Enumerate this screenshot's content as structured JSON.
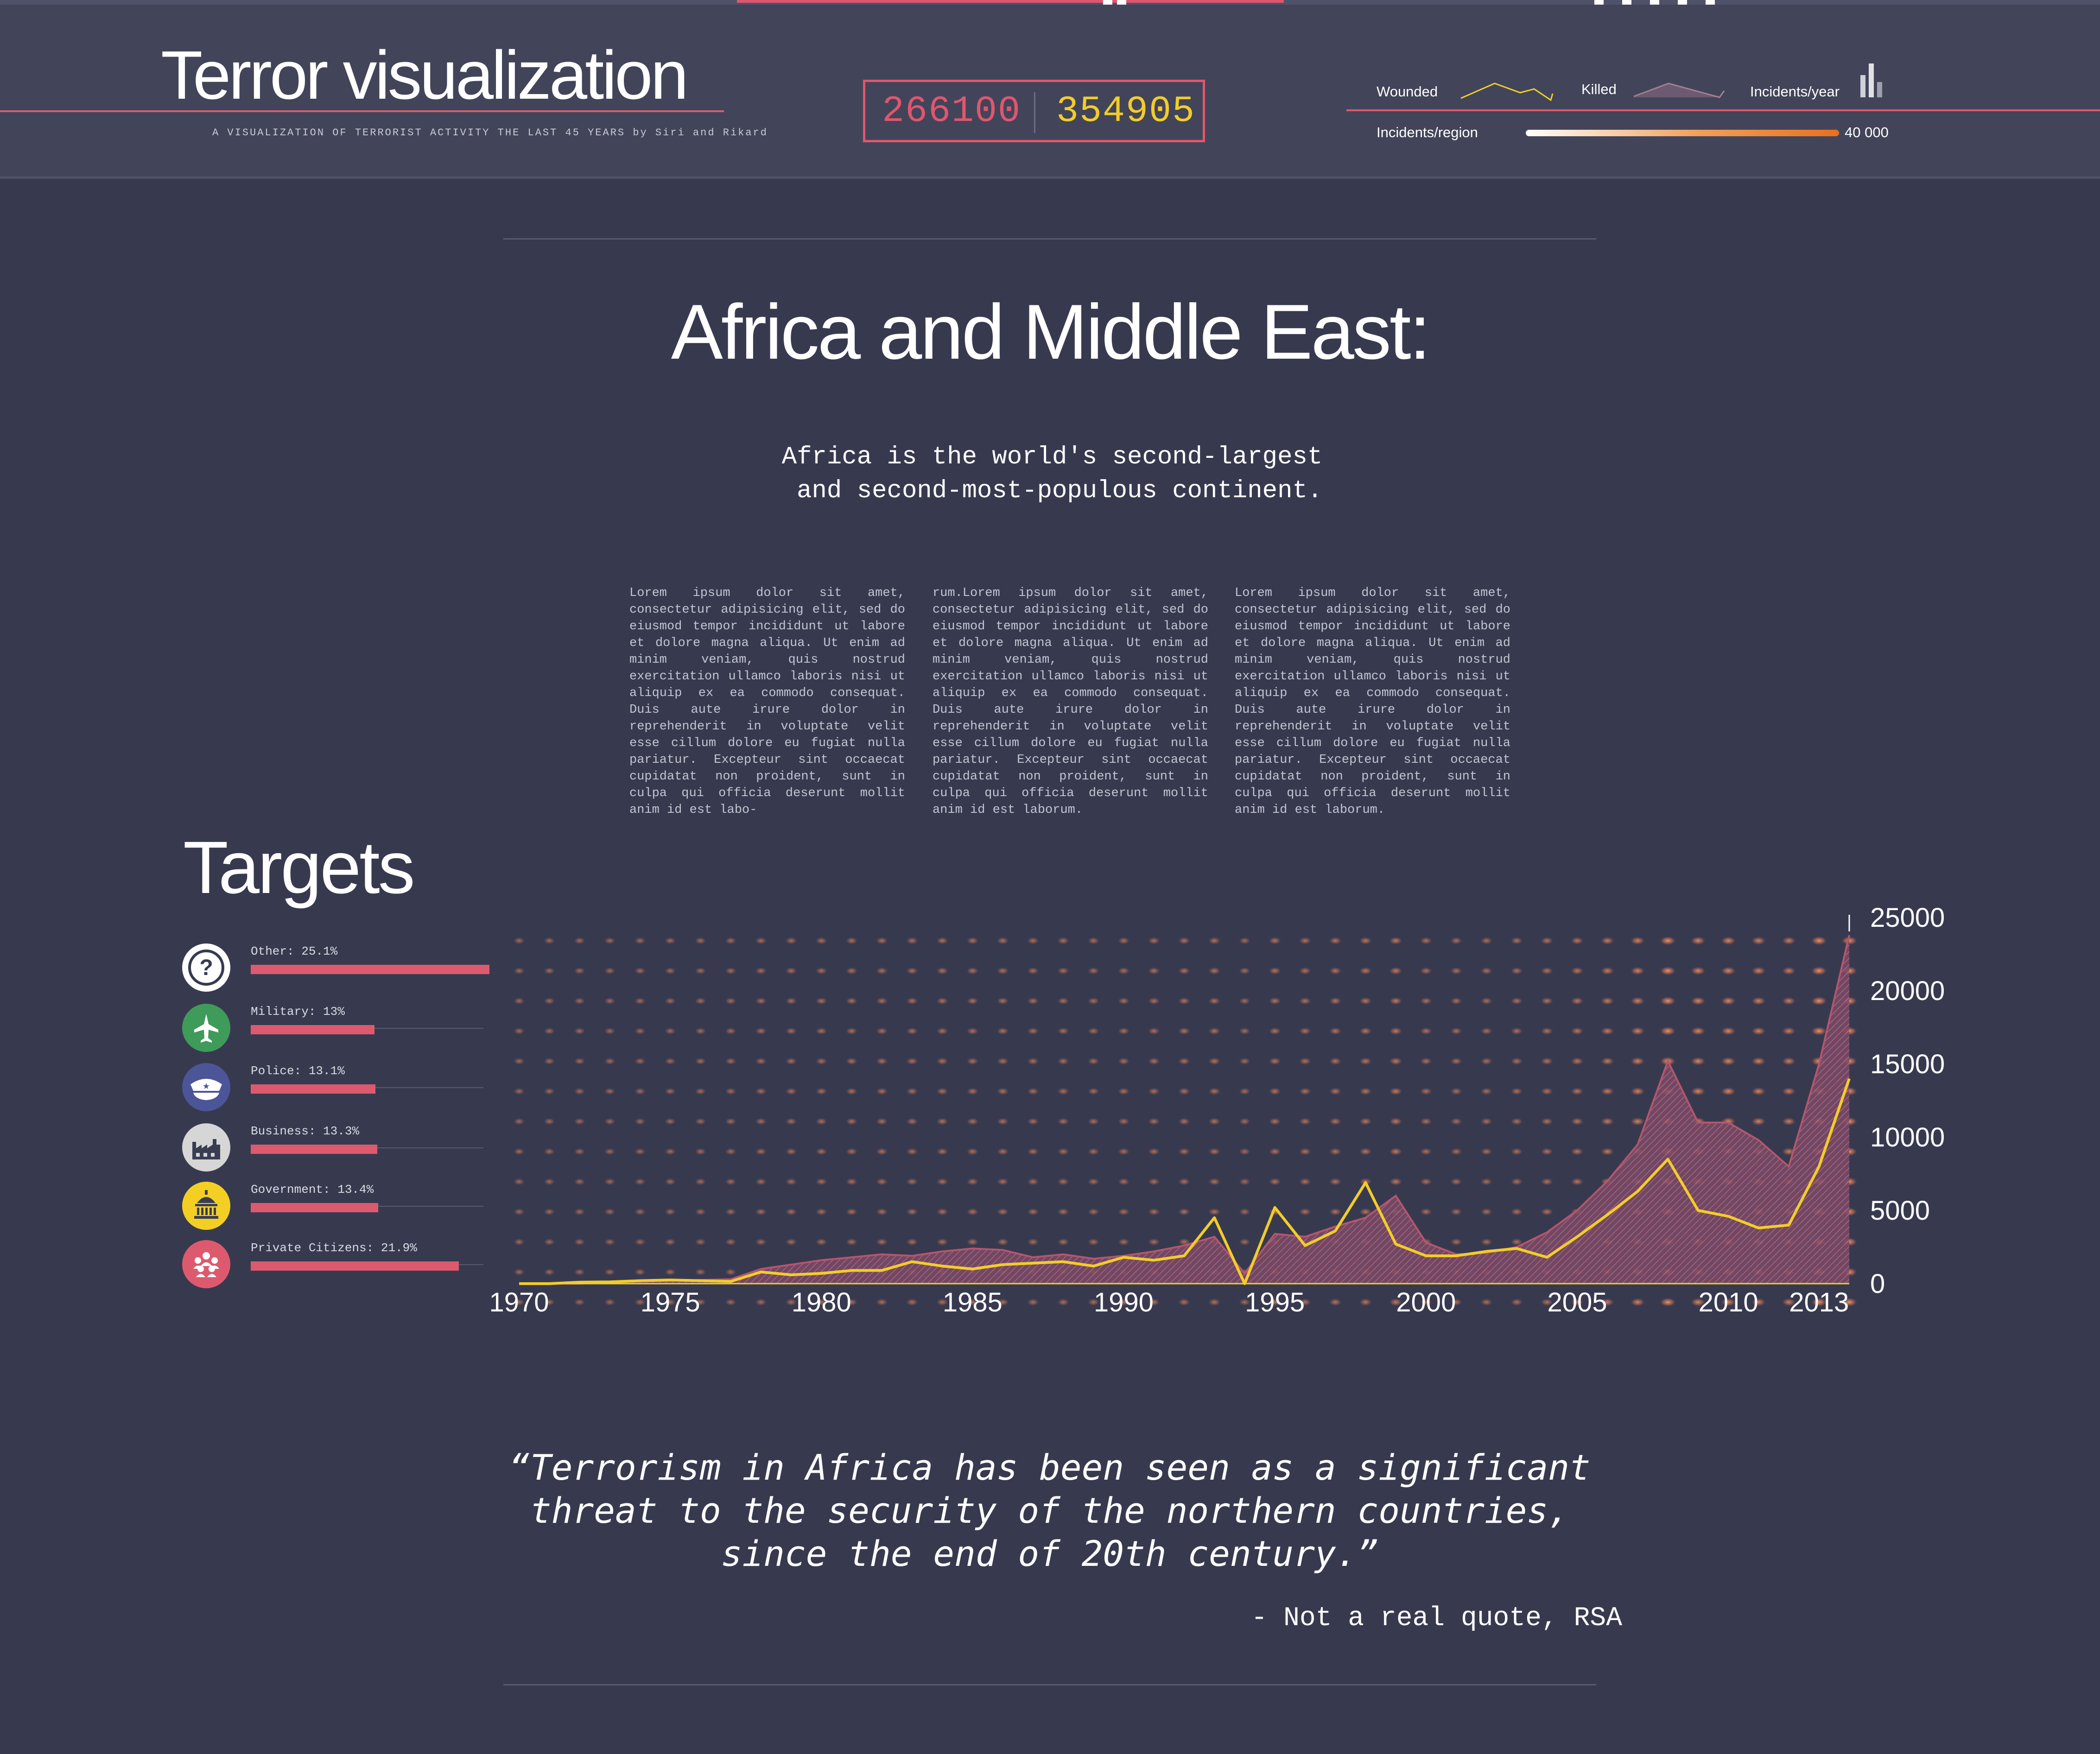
{
  "header": {
    "title": "Terror visualization",
    "subtitle": "A VISUALIZATION OF TERRORIST ACTIVITY THE LAST 45 YEARS by Siri and Rikard",
    "counters": {
      "wounded": "266100",
      "killed": "354905"
    },
    "legend": {
      "wounded_label": "Wounded",
      "killed_label": "Killed",
      "incidents_year_label": "Incidents/year",
      "incidents_region_label": "Incidents/region",
      "gradient_max": "40 000"
    }
  },
  "region": {
    "title": "Africa and Middle East:",
    "intro": "Africa is the world's second-largest\n and second-most-populous continent.",
    "columns": [
      "Lorem ipsum dolor sit amet, consectetur adipisicing elit, sed do eiusmod tempor incididunt ut labore et dolore magna aliqua. Ut enim ad minim veniam, quis nostrud exercitation ullamco laboris nisi ut aliquip ex ea commodo consequat. Duis aute irure dolor in reprehenderit in voluptate velit esse cillum dolore eu fugiat nulla pariatur. Excepteur sint occaecat cupidatat non proident, sunt in culpa qui officia deserunt mollit anim id est labo-",
      "rum.Lorem ipsum dolor sit amet, consectetur adipisicing elit, sed do eiusmod tempor incididunt ut labore et dolore magna aliqua. Ut enim ad minim veniam, quis nostrud exercitation ullamco laboris nisi ut aliquip ex ea commodo consequat. Duis aute irure dolor in reprehenderit in voluptate velit esse cillum dolore eu fugiat nulla pariatur. Excepteur sint occaecat cupidatat non proident, sunt in culpa qui officia deserunt mollit anim id est laborum.",
      "Lorem ipsum dolor sit amet, consectetur adipisicing elit, sed do eiusmod tempor incididunt ut labore et dolore magna aliqua. Ut enim ad minim veniam, quis nostrud exercitation ullamco laboris nisi ut aliquip ex ea commodo consequat. Duis aute irure dolor in reprehenderit in voluptate velit esse cillum dolore eu fugiat nulla pariatur. Excepteur sint occaecat cupidatat non proident, sunt in culpa qui officia deserunt mollit anim id est laborum."
    ]
  },
  "targets": {
    "title": "Targets",
    "items": [
      {
        "label": "Other: 25.1%",
        "value": 25.1,
        "icon": "question-mark-icon",
        "icon_color": "#ffffff"
      },
      {
        "label": "Military: 13%",
        "value": 13.0,
        "icon": "fighter-jet-icon",
        "icon_color": "#3f9b5a"
      },
      {
        "label": "Police: 13.1%",
        "value": 13.1,
        "icon": "police-cap-icon",
        "icon_color": "#4b5597"
      },
      {
        "label": "Business: 13.3%",
        "value": 13.3,
        "icon": "factory-icon",
        "icon_color": "#d6d6d6"
      },
      {
        "label": "Government: 13.4%",
        "value": 13.4,
        "icon": "capitol-icon",
        "icon_color": "#f3cf24"
      },
      {
        "label": "Private Citizens: 21.9%",
        "value": 21.9,
        "icon": "people-group-icon",
        "icon_color": "#dd5a6e"
      }
    ]
  },
  "chart_data": {
    "type": "area",
    "x": [
      1970,
      1971,
      1972,
      1973,
      1974,
      1975,
      1976,
      1977,
      1978,
      1979,
      1980,
      1981,
      1982,
      1983,
      1984,
      1985,
      1986,
      1987,
      1988,
      1989,
      1990,
      1991,
      1992,
      1993,
      1994,
      1995,
      1996,
      1997,
      1998,
      1999,
      2000,
      2001,
      2002,
      2003,
      2004,
      2005,
      2006,
      2007,
      2008,
      2009,
      2010,
      2011,
      2012,
      2013,
      2014
    ],
    "x_ticks": [
      "1970",
      "1975",
      "1980",
      "1985",
      "1990",
      "1995",
      "2000",
      "2005",
      "2010",
      "2013"
    ],
    "y_ticks": [
      "25000",
      "20000",
      "15000",
      "10000",
      "5000",
      "0"
    ],
    "ylim": [
      0,
      25000
    ],
    "series": [
      {
        "name": "Killed",
        "color": "#b5566e",
        "values": [
          0,
          0,
          0,
          100,
          150,
          200,
          250,
          300,
          1000,
          1300,
          1600,
          1800,
          2000,
          1900,
          2200,
          2400,
          2300,
          1800,
          2000,
          1700,
          1900,
          2200,
          2600,
          3200,
          700,
          3400,
          3200,
          3900,
          4500,
          6000,
          2800,
          2000,
          2100,
          2500,
          3500,
          5000,
          7000,
          9500,
          15200,
          11000,
          11000,
          9800,
          8000,
          15000,
          23800
        ]
      },
      {
        "name": "Wounded",
        "color": "#f2cd2a",
        "values": [
          0,
          0,
          100,
          120,
          200,
          250,
          200,
          150,
          800,
          600,
          700,
          900,
          900,
          1500,
          1200,
          1000,
          1300,
          1400,
          1500,
          1200,
          1800,
          1600,
          1900,
          4500,
          0,
          5200,
          2600,
          3600,
          6900,
          2700,
          1900,
          1900,
          2200,
          2400,
          1800,
          3200,
          4700,
          6300,
          8500,
          5000,
          4600,
          3800,
          4000,
          8000,
          14000
        ]
      }
    ]
  },
  "quote": {
    "text": "“Terrorism in Africa has been seen as a significant threat to the security of the northern countries, since the end of 20th century.”",
    "attribution": "- Not a real quote, RSA"
  },
  "colors": {
    "background": "#373a4f",
    "accent_pink": "#dd5a6e",
    "accent_yellow": "#f2cd2a",
    "heat_orange": "#f08a4b"
  }
}
